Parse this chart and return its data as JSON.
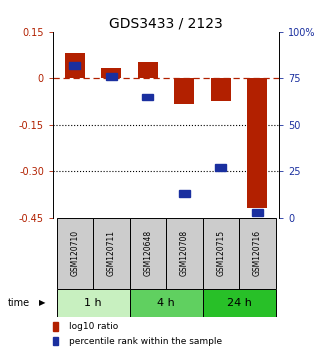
{
  "title": "GDS3433 / 2123",
  "samples": [
    "GSM120710",
    "GSM120711",
    "GSM120648",
    "GSM120708",
    "GSM120715",
    "GSM120716"
  ],
  "log10_ratio": [
    0.082,
    0.032,
    0.052,
    -0.082,
    -0.072,
    -0.42
  ],
  "percentile_rank": [
    82,
    76,
    65,
    13,
    27,
    3
  ],
  "ylim_left": [
    -0.45,
    0.15
  ],
  "ylim_right": [
    0,
    100
  ],
  "yticks_left": [
    0.15,
    0.0,
    -0.15,
    -0.3,
    -0.45
  ],
  "yticks_right": [
    100,
    75,
    50,
    25,
    0
  ],
  "ytick_labels_left": [
    "0.15",
    "0",
    "-0.15",
    "-0.30",
    "-0.45"
  ],
  "ytick_labels_right": [
    "100%",
    "75",
    "50",
    "25",
    "0"
  ],
  "hlines_dotted": [
    -0.15,
    -0.3
  ],
  "hline_zero": 0.0,
  "bar_color": "#b22000",
  "square_color": "#1a2f9f",
  "time_groups": [
    {
      "label": "1 h",
      "indices": [
        0,
        1
      ],
      "color": "#c8f0c0"
    },
    {
      "label": "4 h",
      "indices": [
        2,
        3
      ],
      "color": "#60d060"
    },
    {
      "label": "24 h",
      "indices": [
        4,
        5
      ],
      "color": "#28c028"
    }
  ],
  "sample_box_color": "#cccccc",
  "bar_width": 0.55,
  "legend_red_label": "log10 ratio",
  "legend_blue_label": "percentile rank within the sample",
  "time_label": "time",
  "title_fontsize": 10,
  "axis_fontsize": 7,
  "tick_fontsize": 7,
  "sample_fontsize": 5.5,
  "time_fontsize": 8,
  "legend_fontsize": 6.5
}
